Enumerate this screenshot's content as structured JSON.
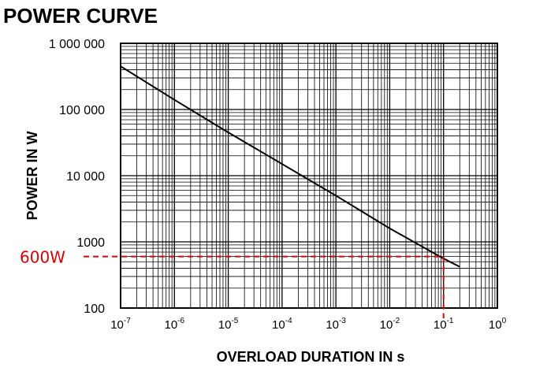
{
  "chart_data": {
    "type": "line",
    "title": "POWER CURVE",
    "xlabel": "OVERLOAD DURATION IN s",
    "ylabel": "POWER IN W",
    "x_scale": "log",
    "y_scale": "log",
    "xlim": [
      1e-07,
      1
    ],
    "ylim": [
      100,
      1000000
    ],
    "grid": true,
    "x_ticks": [
      {
        "base": "10",
        "exp": "-7",
        "value": 1e-07
      },
      {
        "base": "10",
        "exp": "-6",
        "value": 1e-06
      },
      {
        "base": "10",
        "exp": "-5",
        "value": 1e-05
      },
      {
        "base": "10",
        "exp": "-4",
        "value": 0.0001
      },
      {
        "base": "10",
        "exp": "-3",
        "value": 0.001
      },
      {
        "base": "10",
        "exp": "-2",
        "value": 0.01
      },
      {
        "base": "10",
        "exp": "-1",
        "value": 0.1
      },
      {
        "base": "10",
        "exp": "0",
        "value": 1
      }
    ],
    "y_ticks": [
      {
        "label": "100",
        "value": 100
      },
      {
        "label": "1000",
        "value": 1000
      },
      {
        "label": "10 000",
        "value": 10000
      },
      {
        "label": "100 000",
        "value": 100000
      },
      {
        "label": "1 000 000",
        "value": 1000000
      }
    ],
    "series": [
      {
        "color": "#000000",
        "points": [
          {
            "x": 1e-07,
            "y": 450000
          },
          {
            "x": 1e-06,
            "y": 140000
          },
          {
            "x": 1e-05,
            "y": 45000
          },
          {
            "x": 0.0001,
            "y": 15000
          },
          {
            "x": 0.001,
            "y": 5000
          },
          {
            "x": 0.01,
            "y": 1600
          },
          {
            "x": 0.1,
            "y": 560
          },
          {
            "x": 0.2,
            "y": 420
          }
        ]
      }
    ],
    "annotations": [
      {
        "text": "600W",
        "x": 0.1,
        "y": 600,
        "color": "#e00000",
        "style": "dashed"
      }
    ]
  }
}
